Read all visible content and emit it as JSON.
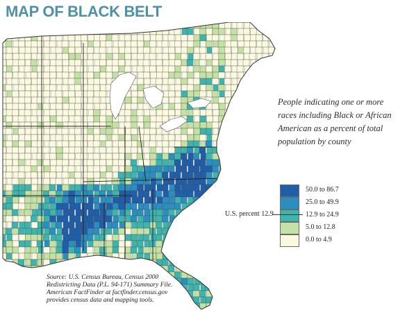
{
  "title": "MAP OF BLACK BELT",
  "caption": "People indicating one or more races including Black or African American as a percent of total population by county",
  "legend": {
    "items": [
      {
        "label": "50.0 to 86.7",
        "color": "#1f5ea8"
      },
      {
        "label": "25.0 to 49.9",
        "color": "#2a8fc0"
      },
      {
        "label": "12.9 to 24.9",
        "color": "#3db5ad"
      },
      {
        "label": "5.0 to 12.8",
        "color": "#c3e2a4"
      },
      {
        "label": "0.0 to 4.9",
        "color": "#fbfae0"
      }
    ],
    "us_percent_label": "U.S. percent 12.9"
  },
  "source": {
    "lines": [
      "Source: U.S. Census Bureau, Census 2000",
      "Redistricting Data (P.L. 94-171) Summary File.",
      "American FactFinder at factfinder.census.gov",
      "provides census data and mapping tools."
    ]
  },
  "colors": {
    "title": "#4e90a6",
    "water": "#ffffff",
    "border": "#3a3a3a"
  }
}
